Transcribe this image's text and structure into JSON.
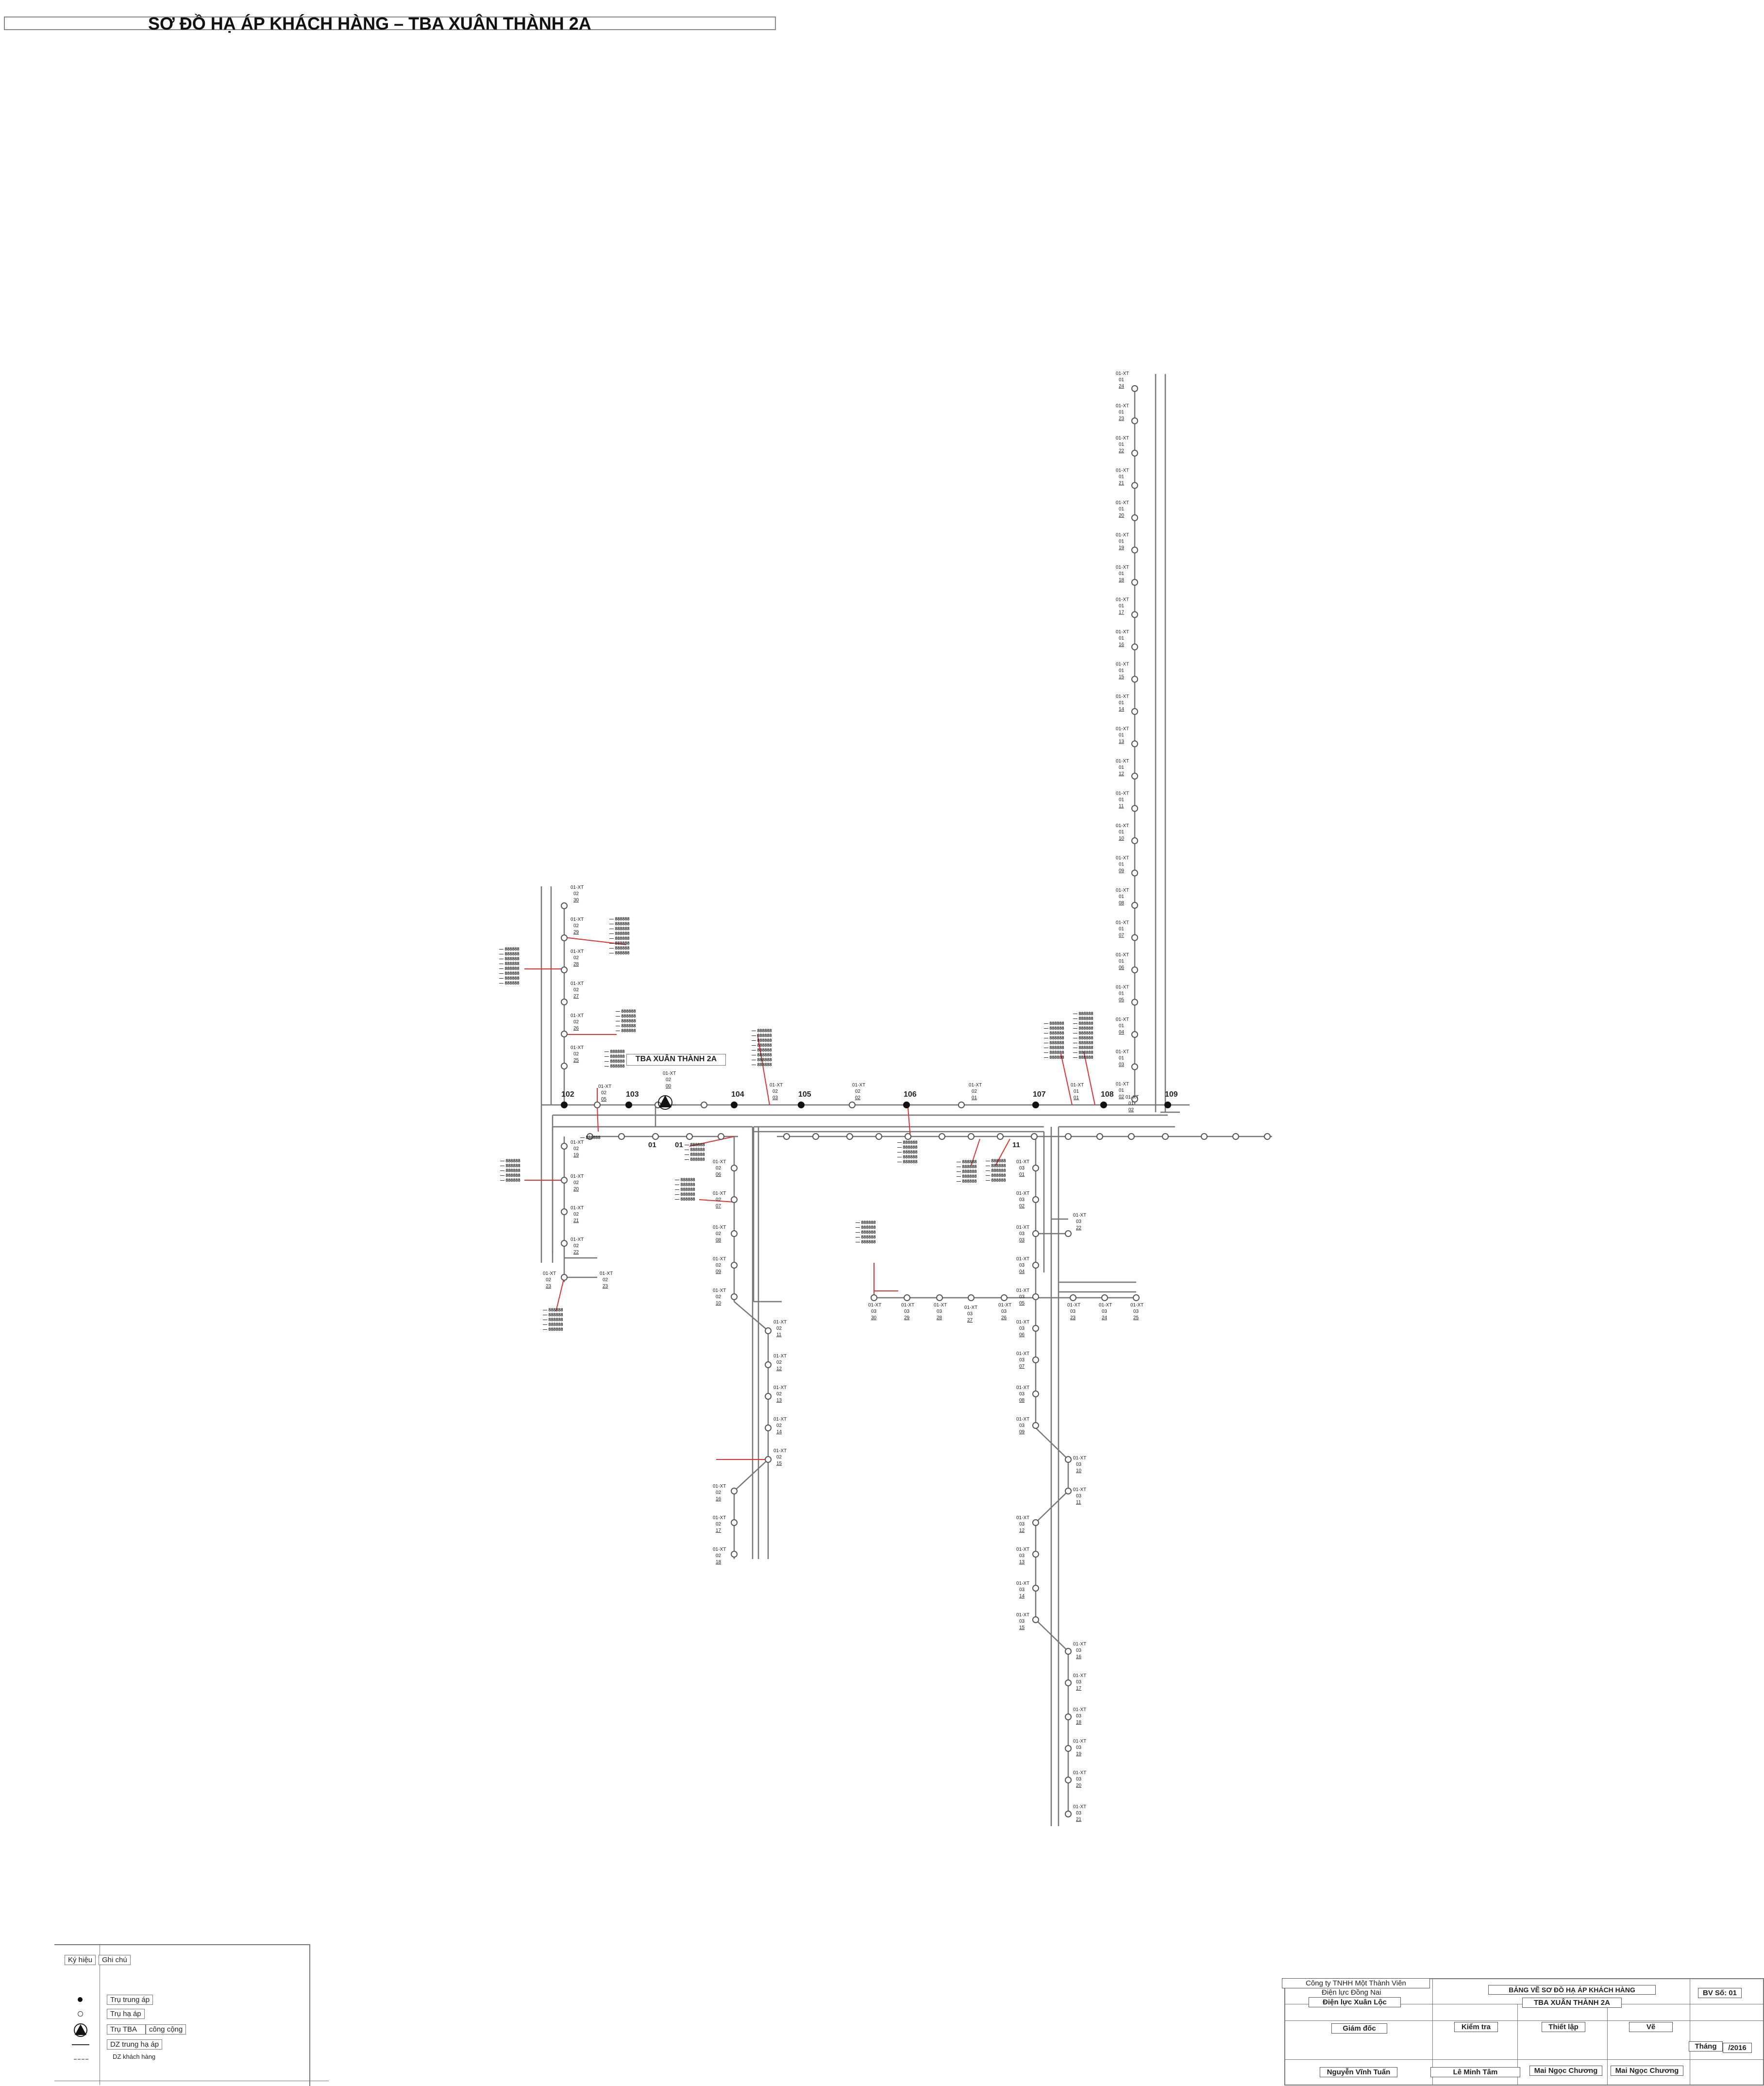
{
  "title": "SƠ ĐỒ HẠ ÁP KHÁCH HÀNG – TBA XUÂN THÀNH 2A",
  "station": {
    "label": "TBA XUÂN THÀNH 2A",
    "pole_label": "01-XT\n02\n00"
  },
  "mv_poles": [
    "102",
    "103",
    "104",
    "105",
    "106",
    "107",
    "108",
    "109"
  ],
  "lv_node_labels": [
    "01",
    "01",
    "11"
  ],
  "pole_prefix": "01-XT",
  "north_branch": {
    "line": "01",
    "poles": [
      "24",
      "23",
      "22",
      "21",
      "20",
      "19",
      "18",
      "17",
      "16",
      "15",
      "14",
      "13",
      "12",
      "11",
      "10",
      "09",
      "08",
      "07",
      "06",
      "05",
      "04",
      "03",
      "02"
    ]
  },
  "west_branch": {
    "line": "02",
    "poles": [
      "30",
      "29",
      "28",
      "27",
      "26",
      "25"
    ]
  },
  "west_south_branch": {
    "line": "02",
    "poles": [
      "19",
      "20",
      "21",
      "22",
      "23",
      "23"
    ]
  },
  "central_south_branch": {
    "line": "02",
    "poles": [
      "06",
      "07",
      "08",
      "09",
      "10",
      "11",
      "12",
      "13",
      "14",
      "15",
      "16",
      "17",
      "18"
    ]
  },
  "east_south_branch": {
    "line": "03",
    "poles": [
      "01",
      "02",
      "03",
      "04",
      "05",
      "06",
      "07",
      "08",
      "09",
      "10",
      "11",
      "12",
      "13",
      "14",
      "15",
      "16",
      "17",
      "18",
      "19",
      "20",
      "21",
      "22"
    ]
  },
  "east_west_row": {
    "line": "03",
    "poles": [
      "30",
      "29",
      "28",
      "27",
      "26",
      "25",
      "23",
      "24",
      "25"
    ]
  },
  "trunk_poles": {
    "line": "02",
    "poles": [
      "05",
      "03",
      "02",
      "01",
      "01",
      "02"
    ]
  },
  "customer_code_glyph": "888888",
  "legend": {
    "header_symbol": "Ký hiệu",
    "header_note": "Ghi chú",
    "items": [
      {
        "icon": "filled-dot",
        "label": "Trụ trung áp"
      },
      {
        "icon": "open-dot",
        "label": "Trụ hạ áp"
      },
      {
        "icon": "transformer-triangle",
        "label": "Trụ TBA",
        "extra": "công cộng"
      },
      {
        "icon": "solid-line",
        "label": "DZ trung hạ áp"
      },
      {
        "icon": "dashed-line",
        "label": "DZ khách hàng"
      }
    ]
  },
  "title_block": {
    "company": "Công ty TNHH Một Thành Viên",
    "dept1": "Điện lực Đồng Nai",
    "dept2": "Điện lực Xuân Lộc",
    "drawing_title": "BẢNG VẼ SƠ ĐỒ HẠ ÁP KHÁCH HÀNG",
    "drawing_subtitle": "TBA XUÂN THÀNH 2A",
    "sheet_no": "BV Số: 01",
    "role_director": "Giám đốc",
    "role_check": "Kiểm tra",
    "role_design": "Thiết lập",
    "role_draw": "Vẽ",
    "month_label": "Tháng",
    "year": "/2016",
    "name_director": "Nguyễn Vĩnh Tuấn",
    "name_check": "Lê Minh Tâm",
    "name_design": "Mai Ngọc Chương",
    "name_draw": "Mai Ngọc Chương"
  },
  "colors": {
    "line": "#777777",
    "customer_line": "#e03030",
    "node_fill": "#111111"
  }
}
